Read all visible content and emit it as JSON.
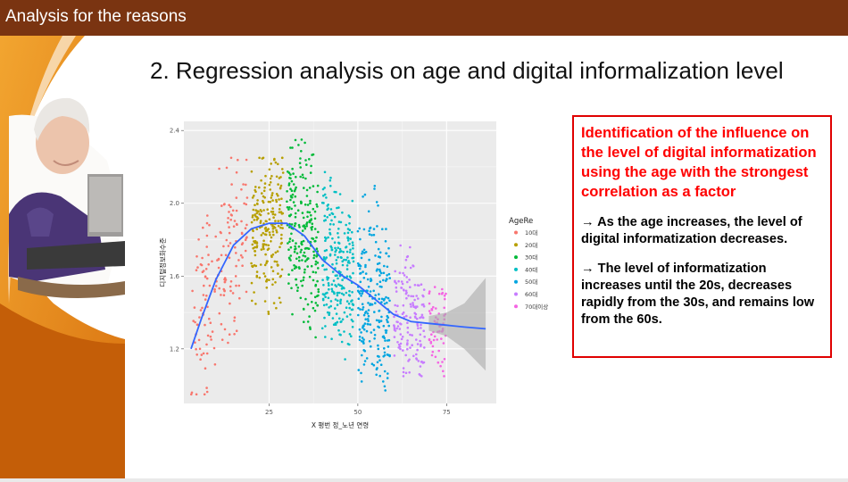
{
  "header": {
    "title": "Analysis for the reasons",
    "bg_color": "#7a3411"
  },
  "slide": {
    "title": "2. Regression analysis on age and digital informalization level",
    "image_alt": "Elderly woman typing on a laptop"
  },
  "callout": {
    "heading": "Identification of the influence on the level of digital informatization using the age with the strongest correlation as a factor",
    "note1": "→ As the age increases, the level of digital informatization decreases.",
    "note2": "→ The level of informatization increases until the 20s, decreases rapidly from the 30s, and remains low from the 60s.",
    "border_color": "#e00000",
    "heading_color": "#ff0000"
  },
  "chart_data": {
    "type": "scatter",
    "title": "",
    "xlabel": "X 평번 정_노년 연령",
    "ylabel": "디지털정보화수준",
    "xlim": [
      1,
      89
    ],
    "ylim": [
      0.9,
      2.45
    ],
    "x_ticks": [
      25,
      50,
      75
    ],
    "y_ticks": [
      1.2,
      1.6,
      2.0,
      2.4
    ],
    "y_tick_labels": [
      "1.2",
      "1.6",
      "2.0",
      "2.4"
    ],
    "grid": true,
    "legend_title": "AgeRe",
    "legend_position": "right",
    "series": [
      {
        "name": "10대",
        "color": "#F8766D",
        "x_range": [
          3,
          19
        ],
        "y_range": [
          0.95,
          2.25
        ]
      },
      {
        "name": "20대",
        "color": "#B79F00",
        "x_range": [
          20,
          29
        ],
        "y_range": [
          1.2,
          2.25
        ]
      },
      {
        "name": "30대",
        "color": "#00BA38",
        "x_range": [
          30,
          39
        ],
        "y_range": [
          1.15,
          2.35
        ]
      },
      {
        "name": "40대",
        "color": "#00BFC4",
        "x_range": [
          40,
          49
        ],
        "y_range": [
          1.0,
          2.2
        ]
      },
      {
        "name": "50대",
        "color": "#00A5E0",
        "x_range": [
          50,
          59
        ],
        "y_range": [
          0.95,
          2.25
        ]
      },
      {
        "name": "60대",
        "color": "#C77CFF",
        "x_range": [
          60,
          69
        ],
        "y_range": [
          1.05,
          2.05
        ]
      },
      {
        "name": "70대이상",
        "color": "#F564E3",
        "x_range": [
          70,
          75
        ],
        "y_range": [
          1.05,
          1.8
        ]
      }
    ],
    "smooth_line": {
      "color": "#3366FF",
      "x": [
        3,
        6,
        10,
        15,
        20,
        25,
        30,
        35,
        40,
        45,
        50,
        55,
        60,
        65,
        70,
        75,
        80,
        86
      ],
      "y": [
        1.2,
        1.37,
        1.58,
        1.77,
        1.86,
        1.89,
        1.89,
        1.82,
        1.69,
        1.61,
        1.55,
        1.47,
        1.39,
        1.35,
        1.34,
        1.33,
        1.32,
        1.31
      ]
    },
    "ci_band": {
      "color": "#aaaaaa",
      "x": [
        70,
        75,
        80,
        86
      ],
      "lower": [
        1.3,
        1.27,
        1.2,
        1.08
      ],
      "upper": [
        1.38,
        1.4,
        1.45,
        1.59
      ]
    }
  }
}
